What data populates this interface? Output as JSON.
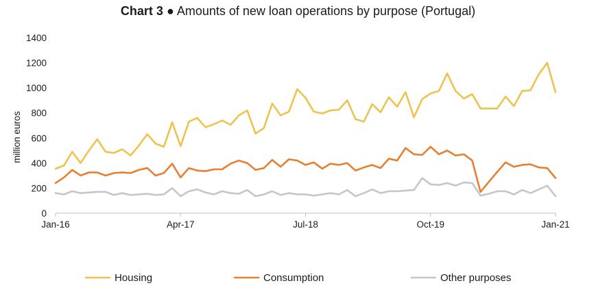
{
  "chart_data": {
    "type": "line",
    "title_bold": "Chart 3",
    "title_sep": "●",
    "title": "Amounts of new loan operations by purpose (Portugal)",
    "xlabel": "",
    "ylabel": "million euros",
    "ylim": [
      0,
      1400
    ],
    "yticks": [
      0,
      200,
      400,
      600,
      800,
      1000,
      1200,
      1400
    ],
    "xtick_labels": [
      "Jan-16",
      "Apr-17",
      "Jul-18",
      "Oct-19",
      "Jan-21"
    ],
    "xtick_index": [
      0,
      15,
      30,
      45,
      60
    ],
    "grid": false,
    "legend_position": "bottom",
    "x_start": "Jan-16",
    "x_end": "Jan-21",
    "series": [
      {
        "name": "Housing",
        "color": "#EDC24E",
        "values": [
          355,
          380,
          490,
          400,
          500,
          590,
          490,
          480,
          510,
          460,
          540,
          630,
          555,
          530,
          725,
          535,
          730,
          760,
          685,
          710,
          740,
          705,
          780,
          820,
          635,
          680,
          875,
          780,
          810,
          990,
          920,
          810,
          795,
          820,
          825,
          900,
          750,
          730,
          870,
          805,
          925,
          850,
          965,
          765,
          910,
          955,
          975,
          1115,
          975,
          915,
          950,
          835,
          835,
          835,
          930,
          855,
          975,
          980,
          1110,
          1200,
          965
        ]
      },
      {
        "name": "Consumption",
        "color": "#E87E2F",
        "values": [
          240,
          285,
          345,
          300,
          325,
          325,
          300,
          320,
          325,
          320,
          345,
          360,
          300,
          320,
          395,
          285,
          360,
          340,
          335,
          350,
          350,
          395,
          420,
          400,
          345,
          360,
          425,
          370,
          430,
          420,
          385,
          405,
          355,
          395,
          385,
          400,
          340,
          365,
          385,
          360,
          435,
          420,
          520,
          470,
          465,
          530,
          470,
          500,
          460,
          470,
          420,
          170,
          250,
          330,
          405,
          370,
          385,
          390,
          365,
          360,
          280
        ]
      },
      {
        "name": "Other purposes",
        "color": "#C6C6C6",
        "values": [
          160,
          150,
          175,
          160,
          165,
          170,
          170,
          145,
          160,
          145,
          150,
          155,
          145,
          150,
          200,
          135,
          175,
          190,
          165,
          150,
          175,
          160,
          155,
          185,
          135,
          150,
          175,
          145,
          160,
          150,
          150,
          140,
          150,
          160,
          150,
          185,
          135,
          160,
          190,
          160,
          175,
          175,
          180,
          185,
          280,
          230,
          225,
          240,
          220,
          245,
          240,
          140,
          155,
          175,
          175,
          150,
          185,
          160,
          190,
          220,
          135
        ]
      }
    ]
  }
}
